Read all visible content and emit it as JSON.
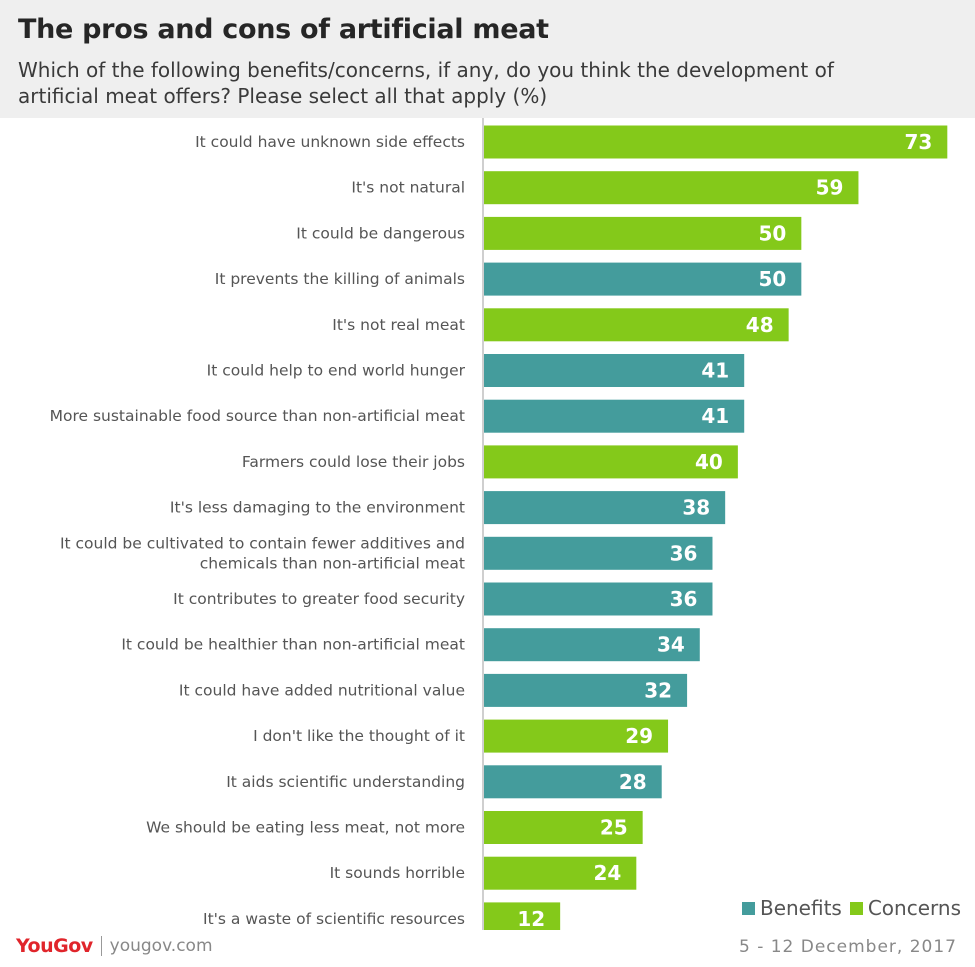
{
  "title": "The pros and cons of artificial meat",
  "subtitle": "Which of the following benefits/concerns, if any, do you think the development of artificial meat offers? Please select all that apply (%)",
  "colors": {
    "benefits": "#449c9c",
    "concerns": "#84c91a",
    "header_bg": "#efefef",
    "brand": "#e0252b"
  },
  "chart_data": {
    "type": "bar",
    "orientation": "horizontal",
    "xlim": [
      0,
      75
    ],
    "categories": [
      "It could have unknown side effects",
      "It's not natural",
      "It could be dangerous",
      "It prevents the killing of animals",
      "It's not real meat",
      "It could help to end world hunger",
      "More sustainable food source than non-artificial meat",
      "Farmers could lose their jobs",
      "It's less damaging to the environment",
      "It could be cultivated to contain fewer additives and chemicals than non-artificial meat",
      "It contributes to greater food security",
      "It could be healthier than non-artificial meat",
      "It could have added nutritional value",
      "I don't like the thought of it",
      "It aids scientific understanding",
      "We should be eating less meat, not more",
      "It sounds horrible",
      "It's a waste of scientific resources"
    ],
    "category_lines": [
      [
        "It could have unknown side effects"
      ],
      [
        "It's not natural"
      ],
      [
        "It could be dangerous"
      ],
      [
        "It prevents the killing of animals"
      ],
      [
        "It's not real meat"
      ],
      [
        "It could help to end world hunger"
      ],
      [
        "More sustainable food source than non-artificial meat"
      ],
      [
        "Farmers could lose their jobs"
      ],
      [
        "It's less damaging to the environment"
      ],
      [
        "It could be cultivated to contain fewer additives and",
        "chemicals than non-artificial meat"
      ],
      [
        "It contributes to greater food security"
      ],
      [
        "It could be healthier than non-artificial meat"
      ],
      [
        "It could have added nutritional value"
      ],
      [
        "I don't like the thought of it"
      ],
      [
        "It aids scientific understanding"
      ],
      [
        "We should be eating less meat, not more"
      ],
      [
        "It sounds horrible"
      ],
      [
        "It's a waste of scientific resources"
      ]
    ],
    "values": [
      73,
      59,
      50,
      50,
      48,
      41,
      41,
      40,
      38,
      36,
      36,
      34,
      32,
      29,
      28,
      25,
      24,
      12
    ],
    "groups": [
      "Concerns",
      "Concerns",
      "Concerns",
      "Benefits",
      "Concerns",
      "Benefits",
      "Benefits",
      "Concerns",
      "Benefits",
      "Benefits",
      "Benefits",
      "Benefits",
      "Benefits",
      "Concerns",
      "Benefits",
      "Concerns",
      "Concerns",
      "Concerns"
    ],
    "legend": [
      "Benefits",
      "Concerns"
    ],
    "legend_position": "bottom-right",
    "grid": false
  },
  "footer": {
    "brand": "YouGov",
    "site": "yougov.com",
    "date": "5 - 12 December, 2017"
  }
}
